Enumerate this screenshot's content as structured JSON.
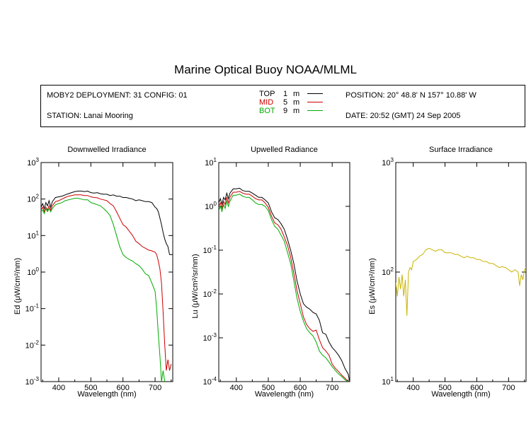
{
  "title": "Marine Optical Buoy NOAA/MLML",
  "info": {
    "deployment": "MOBY2 DEPLOYMENT: 31 CONFIG: 01",
    "station": "STATION: Lanai Mooring",
    "position": "POSITION: 20° 48.8' N   157° 10.88' W",
    "date": "DATE: 20:52 (GMT) 24 Sep 2005",
    "legend": [
      {
        "name": "TOP",
        "depth": "1",
        "unit": "m",
        "color": "#000000"
      },
      {
        "name": "MID",
        "depth": "5",
        "unit": "m",
        "color": "#cc0000"
      },
      {
        "name": "BOT",
        "depth": "9",
        "unit": "m",
        "color": "#00aa00"
      }
    ]
  },
  "chart_data": [
    {
      "type": "line",
      "title": "Downwelled Irradiance",
      "xlabel": "Wavelength (nm)",
      "ylabel": "Ed  (μW/cm²/nm)",
      "xlim": [
        345,
        755
      ],
      "ylim": [
        0.001,
        1000
      ],
      "yscale": "log",
      "xticks": [
        400,
        500,
        600,
        700
      ],
      "yticks": [
        {
          "value": 1000,
          "base": "10",
          "exp": "3"
        },
        {
          "value": 100,
          "base": "10",
          "exp": "2"
        },
        {
          "value": 10,
          "base": "10",
          "exp": "1"
        },
        {
          "value": 1,
          "base": "10",
          "exp": "0"
        },
        {
          "value": 0.1,
          "base": "10",
          "exp": "-1"
        },
        {
          "value": 0.01,
          "base": "10",
          "exp": "-2"
        },
        {
          "value": 0.001,
          "base": "10",
          "exp": "-3"
        }
      ],
      "series": [
        {
          "name": "TOP",
          "color": "#000000",
          "x": [
            345,
            350,
            355,
            360,
            365,
            370,
            375,
            380,
            390,
            400,
            410,
            420,
            430,
            440,
            450,
            460,
            470,
            480,
            490,
            500,
            510,
            520,
            530,
            540,
            550,
            560,
            570,
            580,
            590,
            600,
            610,
            620,
            630,
            640,
            650,
            660,
            670,
            680,
            690,
            700,
            705,
            710,
            715,
            720,
            725,
            730,
            735,
            740,
            745,
            750,
            755
          ],
          "y": [
            60,
            75,
            55,
            80,
            65,
            90,
            60,
            85,
            110,
            115,
            120,
            130,
            140,
            150,
            160,
            165,
            165,
            160,
            165,
            150,
            145,
            150,
            140,
            135,
            135,
            125,
            130,
            120,
            120,
            110,
            110,
            105,
            100,
            90,
            95,
            90,
            85,
            85,
            80,
            60,
            55,
            45,
            30,
            20,
            12,
            8,
            6,
            5,
            3,
            3,
            3
          ]
        },
        {
          "name": "MID",
          "color": "#cc0000",
          "x": [
            345,
            350,
            355,
            360,
            365,
            370,
            375,
            380,
            390,
            400,
            410,
            420,
            430,
            440,
            450,
            460,
            470,
            480,
            490,
            500,
            510,
            520,
            530,
            540,
            550,
            560,
            570,
            580,
            590,
            600,
            610,
            620,
            630,
            640,
            650,
            660,
            670,
            680,
            690,
            700,
            705,
            710,
            715,
            720,
            725,
            730,
            735,
            740,
            745,
            750
          ],
          "y": [
            50,
            60,
            45,
            60,
            50,
            65,
            50,
            65,
            85,
            90,
            100,
            110,
            120,
            125,
            130,
            130,
            130,
            125,
            125,
            115,
            110,
            108,
            100,
            95,
            90,
            75,
            65,
            45,
            30,
            20,
            17,
            13,
            10,
            7,
            6,
            5,
            4.5,
            4,
            3.8,
            3.5,
            3,
            2,
            1.2,
            0.5,
            0.08,
            0.01,
            0.002,
            0.004,
            0.002,
            0.003
          ]
        },
        {
          "name": "BOT",
          "color": "#00aa00",
          "x": [
            345,
            350,
            355,
            360,
            365,
            370,
            375,
            380,
            390,
            400,
            410,
            420,
            430,
            440,
            450,
            460,
            470,
            480,
            490,
            500,
            510,
            520,
            530,
            540,
            550,
            560,
            570,
            580,
            590,
            600,
            610,
            620,
            630,
            640,
            650,
            660,
            670,
            680,
            690,
            700,
            705,
            710,
            715,
            720,
            725,
            730
          ],
          "y": [
            45,
            50,
            40,
            55,
            45,
            55,
            45,
            55,
            70,
            75,
            80,
            90,
            95,
            100,
            105,
            105,
            100,
            95,
            95,
            80,
            75,
            70,
            65,
            55,
            45,
            35,
            20,
            10,
            5,
            3,
            2.5,
            2.2,
            2,
            1.7,
            1.5,
            1.2,
            0.9,
            0.8,
            0.5,
            0.3,
            0.1,
            0.02,
            0.005,
            0.001,
            0.002,
            0.001
          ]
        }
      ]
    },
    {
      "type": "line",
      "title": "Upwelled Radiance",
      "xlabel": "Wavelength (nm)",
      "ylabel": "Lu  (μW/cm²/sr/nm)",
      "xlim": [
        345,
        755
      ],
      "ylim": [
        0.0001,
        10
      ],
      "yscale": "log",
      "xticks": [
        400,
        500,
        600,
        700
      ],
      "yticks": [
        {
          "value": 10,
          "base": "10",
          "exp": "1"
        },
        {
          "value": 1,
          "base": "10",
          "exp": "0"
        },
        {
          "value": 0.1,
          "base": "10",
          "exp": "-1"
        },
        {
          "value": 0.01,
          "base": "10",
          "exp": "-2"
        },
        {
          "value": 0.001,
          "base": "10",
          "exp": "-3"
        },
        {
          "value": 0.0001,
          "base": "10",
          "exp": "-4"
        }
      ],
      "series": [
        {
          "name": "TOP",
          "color": "#000000",
          "x": [
            345,
            350,
            355,
            360,
            365,
            370,
            375,
            380,
            390,
            400,
            410,
            420,
            430,
            440,
            450,
            460,
            470,
            480,
            490,
            500,
            510,
            520,
            530,
            540,
            550,
            560,
            570,
            580,
            590,
            600,
            610,
            620,
            630,
            640,
            650,
            660,
            670,
            680,
            690,
            700,
            710,
            720,
            730,
            740,
            750,
            755
          ],
          "y": [
            1.2,
            1.5,
            1.1,
            1.6,
            1.4,
            2.0,
            1.5,
            2.0,
            2.5,
            2.5,
            2.6,
            2.3,
            2.2,
            2.2,
            2.0,
            1.8,
            1.6,
            1.6,
            1.4,
            1.2,
            0.75,
            0.55,
            0.5,
            0.4,
            0.3,
            0.18,
            0.1,
            0.05,
            0.02,
            0.01,
            0.006,
            0.005,
            0.0045,
            0.0038,
            0.0035,
            0.0025,
            0.0013,
            0.0012,
            0.0008,
            0.0006,
            0.0005,
            0.0004,
            0.0003,
            0.0002,
            0.00015,
            0.0001
          ]
        },
        {
          "name": "MID",
          "color": "#cc0000",
          "x": [
            345,
            350,
            355,
            360,
            365,
            370,
            375,
            380,
            390,
            400,
            410,
            420,
            430,
            440,
            450,
            460,
            470,
            480,
            490,
            500,
            510,
            520,
            530,
            540,
            550,
            560,
            570,
            580,
            590,
            600,
            610,
            620,
            630,
            640,
            650,
            660,
            670,
            680,
            690,
            700,
            710,
            720,
            730,
            740,
            750
          ],
          "y": [
            1.0,
            1.2,
            0.9,
            1.3,
            1.1,
            1.6,
            1.2,
            1.6,
            2.1,
            2.1,
            2.2,
            2.0,
            1.9,
            1.9,
            1.7,
            1.5,
            1.4,
            1.4,
            1.2,
            0.95,
            0.6,
            0.42,
            0.38,
            0.3,
            0.2,
            0.13,
            0.07,
            0.03,
            0.012,
            0.006,
            0.003,
            0.002,
            0.0016,
            0.0014,
            0.0015,
            0.0009,
            0.0006,
            0.0005,
            0.0004,
            0.00025,
            0.0002,
            0.00017,
            0.00014,
            0.00012,
            0.0001
          ]
        },
        {
          "name": "BOT",
          "color": "#00aa00",
          "x": [
            345,
            350,
            355,
            360,
            365,
            370,
            375,
            380,
            390,
            400,
            410,
            420,
            430,
            440,
            450,
            460,
            470,
            480,
            490,
            500,
            510,
            520,
            530,
            540,
            550,
            560,
            570,
            580,
            590,
            600,
            610,
            620,
            630,
            640,
            650,
            660,
            670,
            680,
            690,
            700,
            710,
            720,
            730,
            740,
            750
          ],
          "y": [
            0.8,
            1.0,
            0.75,
            1.1,
            0.9,
            1.3,
            1.0,
            1.3,
            1.8,
            1.8,
            1.9,
            1.7,
            1.6,
            1.6,
            1.4,
            1.2,
            1.1,
            1.1,
            1.0,
            0.8,
            0.5,
            0.35,
            0.3,
            0.22,
            0.16,
            0.09,
            0.05,
            0.02,
            0.008,
            0.004,
            0.0024,
            0.0016,
            0.0013,
            0.0011,
            0.0008,
            0.0005,
            0.0004,
            0.00035,
            0.00028,
            0.00022,
            0.00018,
            0.00015,
            0.00013,
            0.00011,
            0.0001
          ]
        }
      ]
    },
    {
      "type": "line",
      "title": "Surface Irradiance",
      "xlabel": "Wavelength (nm)",
      "ylabel": "Es  (μW/cm²/nm)",
      "xlim": [
        345,
        755
      ],
      "ylim": [
        10,
        1000
      ],
      "yscale": "log",
      "xticks": [
        400,
        500,
        600,
        700
      ],
      "yticks": [
        {
          "value": 1000,
          "base": "10",
          "exp": "3"
        },
        {
          "value": 100,
          "base": "10",
          "exp": "2"
        },
        {
          "value": 10,
          "base": "10",
          "exp": "1"
        }
      ],
      "series": [
        {
          "name": "Es",
          "color": "#c8b400",
          "x": [
            345,
            350,
            355,
            360,
            365,
            370,
            375,
            380,
            385,
            390,
            395,
            400,
            410,
            420,
            430,
            440,
            450,
            460,
            470,
            480,
            490,
            500,
            510,
            520,
            530,
            540,
            550,
            560,
            570,
            580,
            590,
            600,
            610,
            620,
            630,
            640,
            650,
            660,
            670,
            680,
            690,
            700,
            710,
            720,
            730,
            735,
            740,
            745,
            750,
            755
          ],
          "y": [
            80,
            60,
            90,
            70,
            95,
            60,
            85,
            40,
            100,
            110,
            105,
            125,
            130,
            140,
            145,
            160,
            165,
            160,
            155,
            160,
            160,
            150,
            150,
            150,
            145,
            145,
            140,
            135,
            140,
            135,
            135,
            130,
            130,
            125,
            125,
            120,
            120,
            115,
            110,
            112,
            110,
            105,
            100,
            105,
            100,
            75,
            95,
            85,
            105,
            110
          ]
        }
      ]
    }
  ]
}
